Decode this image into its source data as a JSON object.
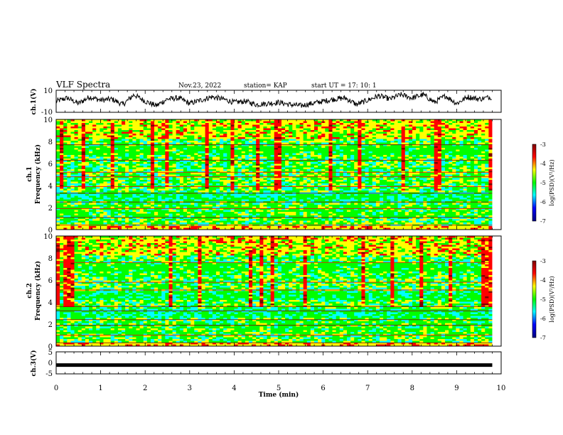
{
  "header": {
    "title": "VLF Spectra",
    "date": "Nov.23, 2022",
    "station": "station= KAP",
    "start_ut": "start UT =  17: 10: 1"
  },
  "colors": {
    "trace": "#000000",
    "colormap": [
      "#00007f",
      "#0000ff",
      "#00ffff",
      "#00ff00",
      "#ffff00",
      "#ff0000",
      "#7f0000"
    ]
  },
  "chart_data": [
    {
      "type": "line",
      "panel": "ch1-waveform",
      "ylabel": "ch.1(V)",
      "ylim": [
        -10,
        10
      ],
      "yticks": [
        "10",
        "-10"
      ],
      "x": [
        0,
        0.25,
        0.5,
        0.75,
        1.0,
        1.25,
        1.5,
        1.75,
        2.0,
        2.25,
        2.5,
        2.75,
        3.0,
        3.25,
        3.5,
        3.75,
        4.0,
        4.25,
        4.5,
        4.75,
        5.0,
        5.25,
        5.5,
        5.75,
        6.0,
        6.25,
        6.5,
        6.75,
        7.0,
        7.25,
        7.5,
        7.75,
        8.0,
        8.25,
        8.5,
        8.75,
        9.0,
        9.25,
        9.5,
        9.8
      ],
      "y": [
        0,
        3,
        -2,
        4,
        1,
        2,
        -3,
        6,
        0,
        -4,
        2,
        3,
        -2,
        1,
        4,
        2,
        -1,
        0,
        -3,
        -2,
        -1,
        -3,
        -4,
        -2,
        0,
        2,
        3,
        -3,
        1,
        5,
        2,
        6,
        3,
        6,
        -1,
        5,
        -2,
        4,
        2,
        4
      ],
      "xlim": [
        0,
        10
      ]
    },
    {
      "type": "heatmap",
      "panel": "ch1-spectrogram",
      "ylabel": "ch.1\nFrequency (kHz)",
      "ylim": [
        0,
        10
      ],
      "yticks": [
        "0",
        "2",
        "4",
        "6",
        "8",
        "10"
      ],
      "xlim": [
        0,
        10
      ],
      "colorbar": {
        "label": "log(PSD)(V²/Hz)",
        "range": [
          -7,
          -3
        ],
        "ticks": [
          "-3",
          "-4",
          "-5",
          "-6",
          "-7"
        ]
      }
    },
    {
      "type": "heatmap",
      "panel": "ch2-spectrogram",
      "ylabel": "ch.2\nFrequency (kHz)",
      "ylim": [
        0,
        10
      ],
      "yticks": [
        "0",
        "2",
        "4",
        "6",
        "8",
        "10"
      ],
      "xlim": [
        0,
        10
      ],
      "colorbar": {
        "label": "log(PSD)(V²/Hz)",
        "range": [
          -7,
          -3
        ],
        "ticks": [
          "-3",
          "-4",
          "-5",
          "-6",
          "-7"
        ]
      }
    },
    {
      "type": "line",
      "panel": "ch3-waveform",
      "ylabel": "ch.3(V)",
      "ylim": [
        -5,
        5
      ],
      "yticks": [
        "5",
        "0",
        "-5"
      ],
      "x": [
        0,
        9.8
      ],
      "y": [
        -1,
        -1
      ],
      "xlim": [
        0,
        10
      ],
      "xlabel": "Time (min)",
      "xticks": [
        "0",
        "1",
        "2",
        "3",
        "4",
        "5",
        "6",
        "7",
        "8",
        "9",
        "10"
      ]
    }
  ]
}
